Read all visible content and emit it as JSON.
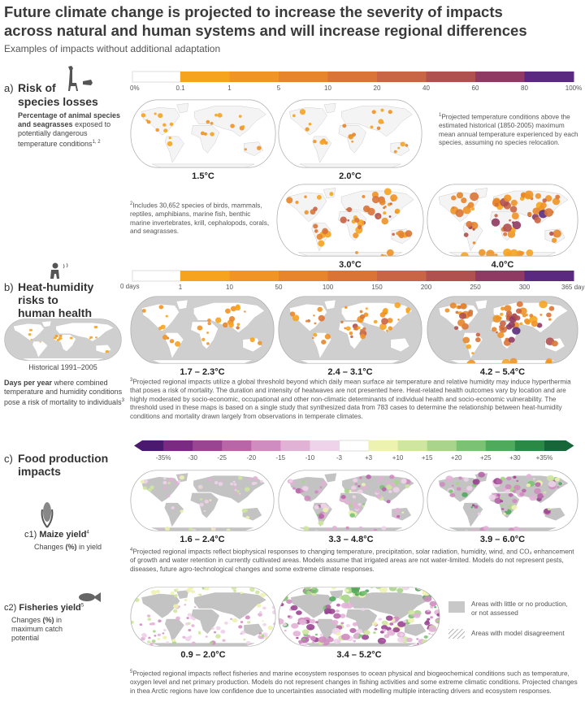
{
  "header": {
    "title_lines": [
      "Future climate change is projected to increase the severity of impacts",
      "across natural and human systems and will increase regional differences"
    ],
    "subtitle": "Examples of impacts without additional adaptation"
  },
  "species": {
    "letter": "a)",
    "title_lines": [
      "Risk of",
      "species losses"
    ],
    "desc_bold": "Percentage of animal species and seagrasses",
    "desc": "exposed to potentially dangerous temperature conditions",
    "desc_sup": "1, 2",
    "scale": [
      "0%",
      "0.1",
      "1",
      "5",
      "10",
      "20",
      "40",
      "60",
      "80",
      "100%"
    ],
    "maps": [
      "1.5°C",
      "2.0°C",
      "3.0°C",
      "4.0°C"
    ],
    "note1_mark": "1",
    "note1": "Projected temperature conditions above the estimated historical (1850-2005) maximum mean annual temperature experienced by each species, assuming no species relocation.",
    "note2_mark": "2",
    "note2": "Includes 30,652 species of birds, mammals, reptiles, amphibians, marine fish, benthic marine invertebrates, krill, cephalopods, corals, and seagrasses."
  },
  "heat": {
    "letter": "b)",
    "title_lines": [
      "Heat-humidity",
      "risks to",
      "human health"
    ],
    "scale": [
      "0 days",
      "1",
      "10",
      "50",
      "100",
      "150",
      "200",
      "250",
      "300",
      "365 days"
    ],
    "historical": "Historical 1991–2005",
    "maps": [
      "1.7 – 2.3°C",
      "2.4 – 3.1°C",
      "4.2 – 5.4°C"
    ],
    "desc_bold": "Days per year",
    "desc": "where combined temperature and humidity conditions pose a risk of mortality to individuals",
    "desc_sup": "3",
    "note_mark": "3",
    "note": "Projected regional impacts utilize a global threshold beyond which daily mean surface air temperature and relative humidity may induce hyperthermia that poses a risk of mortality. The duration and intensity of heatwaves are not presented here. Heat-related health outcomes vary by location and are highly moderated by socio-economic, occupational and other non-climatic determinants of individual health and socio-economic vulnerability. The threshold used in these maps is based on a single study that synthesized data from 783 cases to determine the relationship between heat-humidity conditions and mortality drawn largely from observations in temperate climates."
  },
  "food": {
    "letter": "c)",
    "title_lines": [
      "Food production",
      "impacts"
    ],
    "scale": [
      "-35%",
      "-30",
      "-25",
      "-20",
      "-15",
      "-10",
      "-3",
      "+3",
      "+10",
      "+15",
      "+20",
      "+25",
      "+30",
      "+35%"
    ],
    "maize": {
      "label": "c1)",
      "title": "Maize yield",
      "sup": "4",
      "desc_parts": [
        "Changes ",
        "(%)",
        " in yield"
      ],
      "maps": [
        "1.6 – 2.4°C",
        "3.3 – 4.8°C",
        "3.9 – 6.0°C"
      ],
      "note_mark": "4",
      "note": "Projected regional impacts reflect biophysical responses to changing temperature, precipitation, solar radiation, humidity, wind, and CO₂ enhancement of growth and water retention in currently cultivated areas. Models assume that irrigated areas are not water-limited. Models do not represent pests, diseases, future agro-technological changes and some extreme climate responses."
    },
    "fisheries": {
      "label": "c2)",
      "title": "Fisheries yield",
      "sup": "5",
      "desc_parts": [
        "Changes ",
        "(%)",
        " in maximum catch potential"
      ],
      "maps": [
        "0.9 – 2.0°C",
        "3.4 – 5.2°C"
      ],
      "legend": [
        "Areas with little or no production, or not assessed",
        "Areas with model disagreement"
      ],
      "note_mark": "5",
      "note": "Projected regional impacts reflect fisheries and marine ecosystem responses to ocean physical and biogeochemical conditions such as temperature, oxygen level and net primary production. Models do not represent changes in fishing activities and some extreme climatic conditions. Projected changes in thea Arctic regions have low confidence due to uncertainties associated with modelling multiple interacting drivers and ecosystem responses."
    }
  }
}
